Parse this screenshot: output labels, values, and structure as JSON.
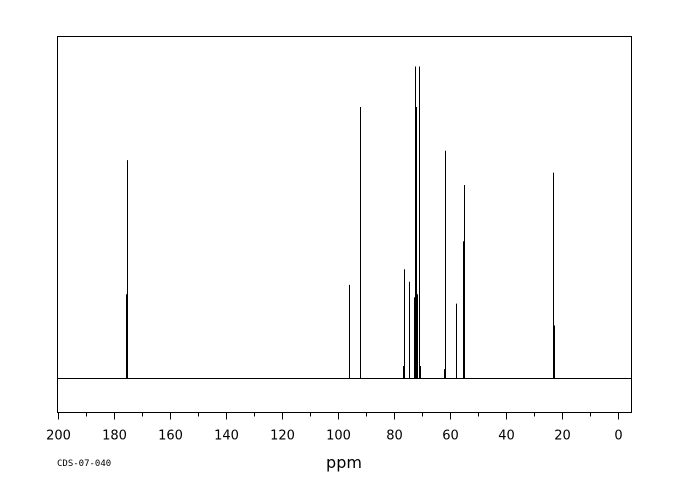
{
  "chart_data": {
    "type": "line",
    "title": "",
    "xlabel": "ppm",
    "ylabel": "",
    "sample_code": "CDS-07-040",
    "xlim": [
      200,
      -5
    ],
    "ylim": [
      -0.12,
      1.04
    ],
    "x_reversed": true,
    "grid": false,
    "x_ticks": [
      200,
      180,
      160,
      140,
      120,
      100,
      80,
      60,
      40,
      20,
      0
    ],
    "x_tick_labels": [
      "200",
      "180",
      "160",
      "140",
      "120",
      "100",
      "80",
      "60",
      "40",
      "20",
      "0"
    ],
    "series": [
      {
        "peaks": [
          {
            "x": 175.6,
            "y": 0.27
          },
          {
            "x": 175.2,
            "y": 0.7
          },
          {
            "x": 95.9,
            "y": 0.3
          },
          {
            "x": 92.1,
            "y": 0.22
          },
          {
            "x": 91.9,
            "y": 0.87
          },
          {
            "x": 76.7,
            "y": 0.04
          },
          {
            "x": 76.3,
            "y": 0.35
          },
          {
            "x": 74.6,
            "y": 0.31
          },
          {
            "x": 72.7,
            "y": 0.26
          },
          {
            "x": 72.3,
            "y": 1.0
          },
          {
            "x": 71.8,
            "y": 0.87
          },
          {
            "x": 71.5,
            "y": 0.27
          },
          {
            "x": 71.0,
            "y": 1.0
          },
          {
            "x": 70.7,
            "y": 0.04
          },
          {
            "x": 61.9,
            "y": 0.03
          },
          {
            "x": 61.6,
            "y": 0.73
          },
          {
            "x": 57.6,
            "y": 0.24
          },
          {
            "x": 55.2,
            "y": 0.44
          },
          {
            "x": 54.9,
            "y": 0.62
          },
          {
            "x": 23.2,
            "y": 0.07
          },
          {
            "x": 22.9,
            "y": 0.66
          },
          {
            "x": 22.6,
            "y": 0.17
          }
        ]
      }
    ]
  }
}
